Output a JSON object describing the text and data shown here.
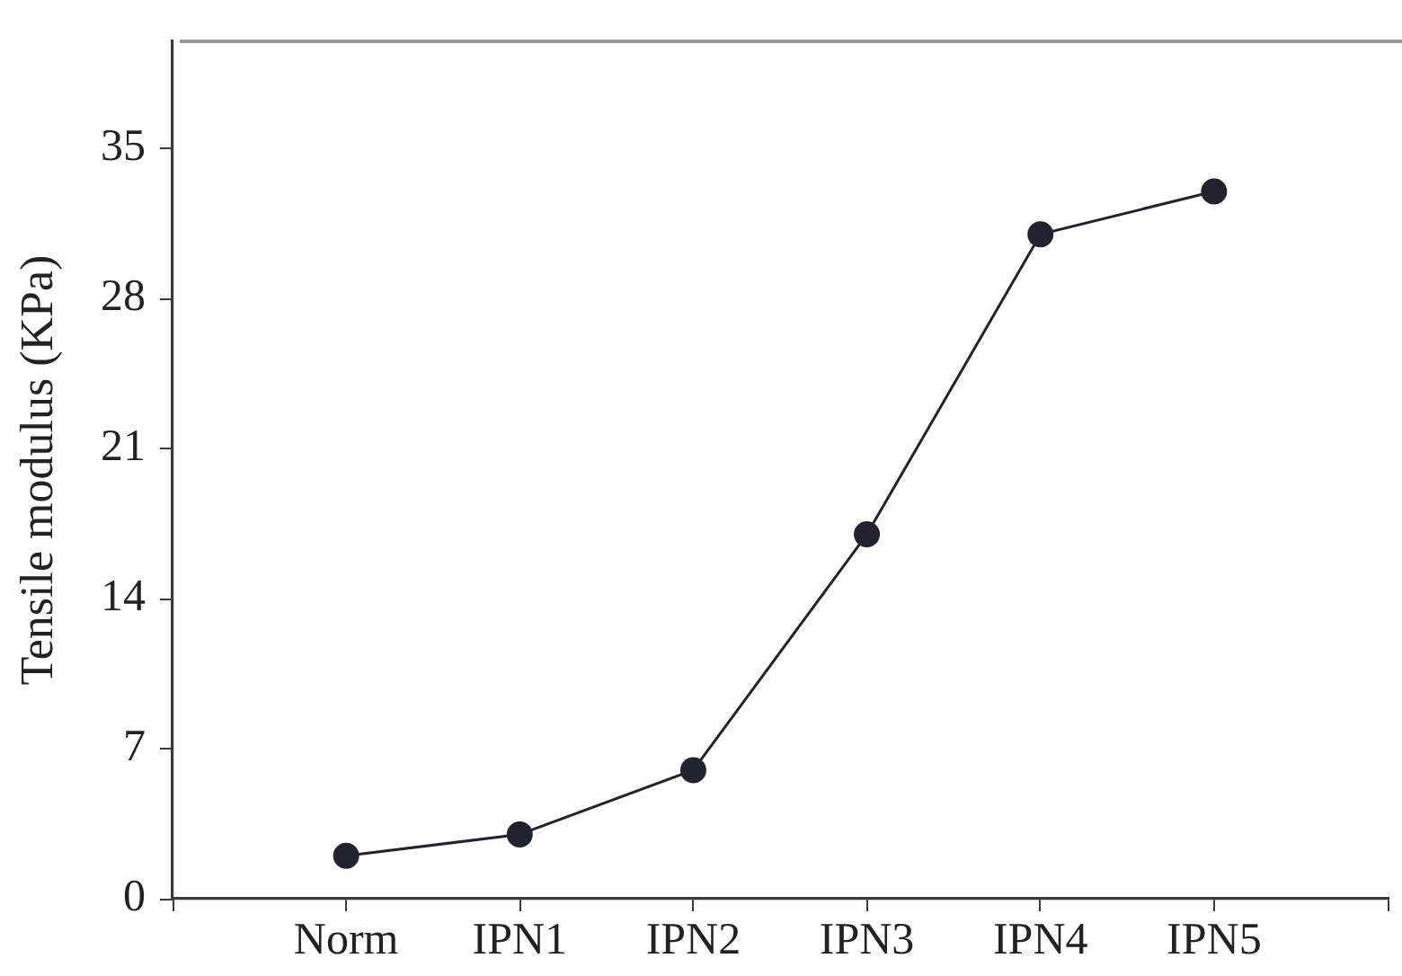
{
  "chart_data": {
    "type": "line",
    "ylabel": "Tensile modulus (KPa)",
    "categories": [
      "Norm",
      "IPN1",
      "IPN2",
      "IPN3",
      "IPN4",
      "IPN5"
    ],
    "series": [
      {
        "color": "#23232f",
        "values": [
          2,
          3,
          6,
          17,
          31,
          33
        ]
      }
    ],
    "ylim": [
      0,
      40
    ],
    "yticks": [
      0,
      7,
      14,
      21,
      28,
      35
    ],
    "marker": "circle",
    "line_style": "solid"
  }
}
